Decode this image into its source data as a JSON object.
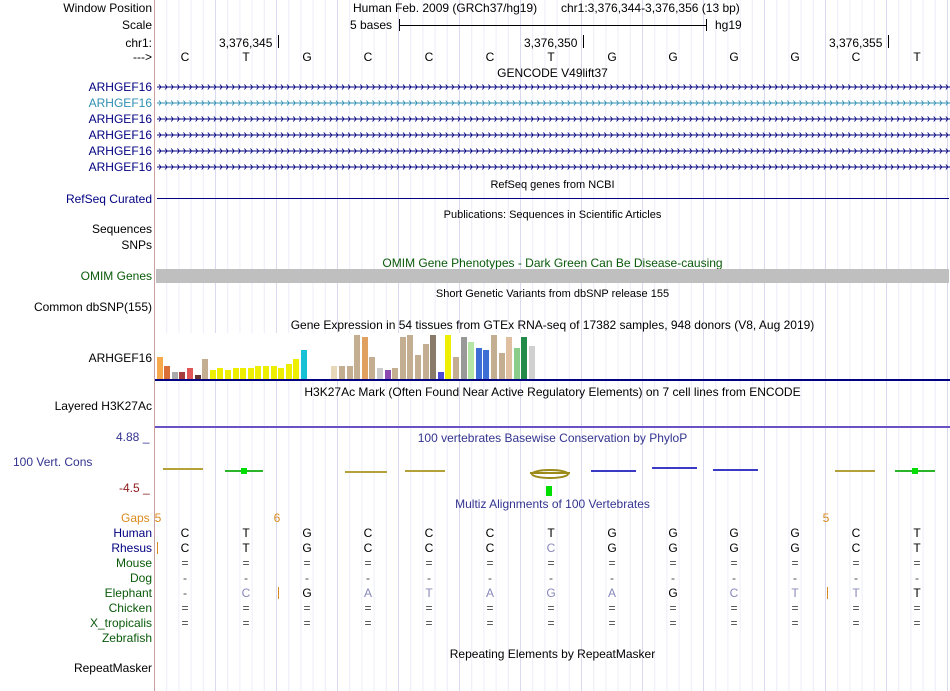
{
  "position_label": "Window Position",
  "assembly": "Human Feb. 2009 (GRCh37/hg19)",
  "coordinates": "chr1:3,376,344-3,376,356 (13 bp)",
  "scale_label": "Scale",
  "scale_value": "5 bases",
  "scale_db": "hg19",
  "chrom_label": "chr1:",
  "ticks": [
    "3,376,345",
    "3,376,350",
    "3,376,355"
  ],
  "strand_label": "--->",
  "bases": [
    "C",
    "T",
    "G",
    "C",
    "C",
    "C",
    "T",
    "G",
    "G",
    "G",
    "G",
    "C",
    "T"
  ],
  "gencode_title": "GENCODE V49lift37",
  "gencode_genes": [
    "ARHGEF16",
    "ARHGEF16",
    "ARHGEF16",
    "ARHGEF16",
    "ARHGEF16",
    "ARHGEF16"
  ],
  "refseq_title": "RefSeq genes from NCBI",
  "refseq_label": "RefSeq Curated",
  "pubs_title": "Publications: Sequences in Scientific Articles",
  "sequences_label": "Sequences",
  "snps_label": "SNPs",
  "omim_title": "OMIM Gene Phenotypes - Dark Green Can Be Disease-causing",
  "omim_label": "OMIM Genes",
  "dbsnp_title": "Short Genetic Variants from dbSNP release 155",
  "dbsnp_label": "Common dbSNP(155)",
  "gtex_title": "Gene Expression in 54 tissues from GTEx RNA-seq of 17382 samples, 948 donors (V8, Aug 2019)",
  "gtex_label": "ARHGEF16",
  "gtex_bars": [
    {
      "v": 0.5,
      "c": "#f5a94b"
    },
    {
      "v": 0.3,
      "c": "#d96e36"
    },
    {
      "v": 0.15,
      "c": "#aaaaaa"
    },
    {
      "v": 0.15,
      "c": "#a63d3d"
    },
    {
      "v": 0.25,
      "c": "#e05555"
    },
    {
      "v": 0.1,
      "c": "#663333"
    },
    {
      "v": 0.45,
      "c": "#c4ae91"
    },
    {
      "v": 0.2,
      "c": "#eeee00"
    },
    {
      "v": 0.25,
      "c": "#eeee00"
    },
    {
      "v": 0.2,
      "c": "#eeee00"
    },
    {
      "v": 0.25,
      "c": "#eeee00"
    },
    {
      "v": 0.25,
      "c": "#eeee00"
    },
    {
      "v": 0.25,
      "c": "#eeee00"
    },
    {
      "v": 0.3,
      "c": "#eeee00"
    },
    {
      "v": 0.3,
      "c": "#eeee00"
    },
    {
      "v": 0.3,
      "c": "#eeee00"
    },
    {
      "v": 0.25,
      "c": "#eeee00"
    },
    {
      "v": 0.35,
      "c": "#eeee00"
    },
    {
      "v": 0.45,
      "c": "#eeee00"
    },
    {
      "v": 0.65,
      "c": "#19c1d6"
    },
    {
      "v": 0.0,
      "c": "#ffffff"
    },
    {
      "v": 0.0,
      "c": "#ffffff"
    },
    {
      "v": 0.0,
      "c": "#ffffff"
    },
    {
      "v": 0.3,
      "c": "#e6d8b8"
    },
    {
      "v": 0.3,
      "c": "#c4ae91"
    },
    {
      "v": 0.3,
      "c": "#c4ae91"
    },
    {
      "v": 1.0,
      "c": "#c4ae91"
    },
    {
      "v": 0.95,
      "c": "#e0a060"
    },
    {
      "v": 0.5,
      "c": "#c4ae91"
    },
    {
      "v": 0.25,
      "c": "#cccccc"
    },
    {
      "v": 0.2,
      "c": "#8a4ab2"
    },
    {
      "v": 0.25,
      "c": "#c4ae91"
    },
    {
      "v": 0.95,
      "c": "#c4ae91"
    },
    {
      "v": 1.0,
      "c": "#c4ae91"
    },
    {
      "v": 0.55,
      "c": "#c4ae91"
    },
    {
      "v": 0.8,
      "c": "#c4ae91"
    },
    {
      "v": 1.0,
      "c": "#8a7a6a"
    },
    {
      "v": 0.15,
      "c": "#4a4ad6"
    },
    {
      "v": 1.0,
      "c": "#eeee00"
    },
    {
      "v": 0.5,
      "c": "#c4ae91"
    },
    {
      "v": 0.95,
      "c": "#999999"
    },
    {
      "v": 0.85,
      "c": "#b6e6a6"
    },
    {
      "v": 0.7,
      "c": "#3d6ed6"
    },
    {
      "v": 0.65,
      "c": "#3d6ed6"
    },
    {
      "v": 1.0,
      "c": "#c4ae91"
    },
    {
      "v": 0.6,
      "c": "#c4ae91"
    },
    {
      "v": 0.95,
      "c": "#e0c0a0"
    },
    {
      "v": 0.7,
      "c": "#8acc8a"
    },
    {
      "v": 0.95,
      "c": "#228b4a"
    },
    {
      "v": 0.75,
      "c": "#d0d0d0"
    }
  ],
  "h3k_title": "H3K27Ac Mark (Often Found Near Active Regulatory Elements) on 7 cell lines from ENCODE",
  "h3k_label": "Layered H3K27Ac",
  "cons_top": "4.88 _",
  "cons_label": "100 Vert. Cons",
  "cons_bottom": "-4.5 _",
  "cons_title": "100 vertebrates Basewise Conservation by PhyloP",
  "multiz_title": "Multiz Alignments of 100 Vertebrates",
  "gaps_label": "Gaps",
  "gaps_marks": [
    {
      "pos": 0,
      "text": "5"
    },
    {
      "pos": 2,
      "text": "6"
    },
    {
      "pos": 11,
      "text": "5"
    }
  ],
  "species": [
    {
      "name": "Human",
      "row": [
        "C",
        "T",
        "G",
        "C",
        "C",
        "C",
        "T",
        "G",
        "G",
        "G",
        "G",
        "C",
        "T"
      ]
    },
    {
      "name": "Rhesus",
      "row": [
        "C",
        "T",
        "G",
        "C",
        "C",
        "C",
        "C",
        "G",
        "G",
        "G",
        "G",
        "C",
        "T"
      ]
    },
    {
      "name": "Mouse",
      "row": [
        "=",
        "=",
        "=",
        "=",
        "=",
        "=",
        "=",
        "=",
        "=",
        "=",
        "=",
        "=",
        "="
      ]
    },
    {
      "name": "Dog",
      "row": [
        "-",
        "-",
        "-",
        "-",
        "-",
        "-",
        "-",
        "-",
        "-",
        "-",
        "-",
        "-",
        "-"
      ]
    },
    {
      "name": "Elephant",
      "row": [
        "-",
        "C",
        "G",
        "A",
        "T",
        "A",
        "G",
        "A",
        "G",
        "C",
        "T",
        "T",
        "T"
      ]
    },
    {
      "name": "Chicken",
      "row": [
        "=",
        "=",
        "=",
        "=",
        "=",
        "=",
        "=",
        "=",
        "=",
        "=",
        "=",
        "=",
        "="
      ]
    },
    {
      "name": "X_tropicalis",
      "row": [
        "=",
        "=",
        "=",
        "=",
        "=",
        "=",
        "=",
        "=",
        "=",
        "=",
        "=",
        "=",
        "="
      ]
    },
    {
      "name": "Zebrafish",
      "row": [
        "",
        "",
        "",
        "",
        "",
        "",
        "",
        "",
        "",
        "",
        "",
        "",
        ""
      ]
    }
  ],
  "repeat_title": "Repeating Elements by RepeatMasker",
  "repeat_label": "RepeatMasker",
  "colors": {
    "navy": "#000080",
    "green": "#0a5a0a",
    "orange": "#d98a1e",
    "omim_gray": "#bfbfbf",
    "cons_blue": "#33338f",
    "cons_red": "#8b1a1a"
  }
}
